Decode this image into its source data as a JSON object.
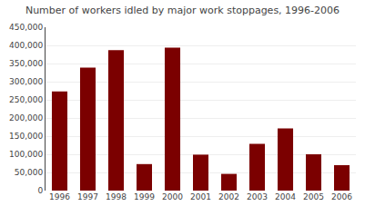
{
  "chart_data": {
    "type": "bar",
    "title": "Number of workers idled by major work stoppages, 1996-2006",
    "categories": [
      "1996",
      "1997",
      "1998",
      "1999",
      "2000",
      "2001",
      "2002",
      "2003",
      "2004",
      "2005",
      "2006"
    ],
    "values": [
      273000,
      339000,
      387000,
      73000,
      394000,
      99000,
      46000,
      129000,
      171000,
      100000,
      70000
    ],
    "color": "#7b0000",
    "ylim": [
      0,
      450000
    ],
    "yticks": [
      0,
      {
        "value": 50000,
        "label": "50,000"
      },
      {
        "value": 100000,
        "label": "100,000"
      },
      {
        "value": 150000,
        "label": "150,000"
      },
      {
        "value": 200000,
        "label": "200,000"
      },
      {
        "value": 250000,
        "label": "250,000"
      },
      {
        "value": 300000,
        "label": "300,000"
      },
      {
        "value": 350000,
        "label": "350,000"
      },
      {
        "value": 400000,
        "label": "400,000"
      },
      {
        "value": 450000,
        "label": "450,000"
      }
    ],
    "grid": true
  }
}
